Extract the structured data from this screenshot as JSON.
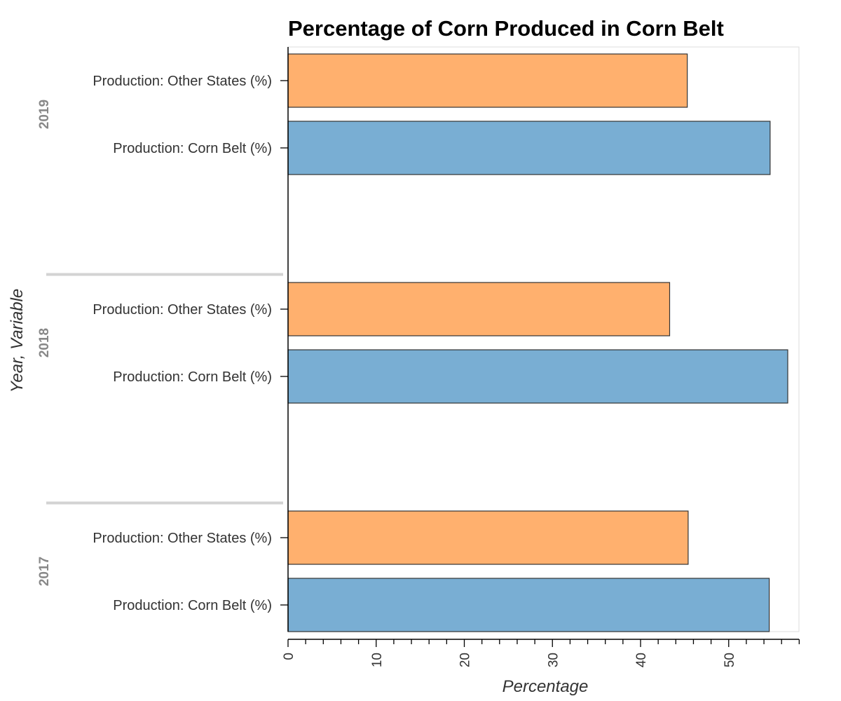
{
  "chart_data": {
    "type": "bar",
    "orientation": "horizontal",
    "title": "Percentage of Corn Produced in Corn Belt",
    "xlabel": "Percentage",
    "ylabel": "Year, Variable",
    "xlim": [
      0,
      58
    ],
    "x_ticks": [
      0,
      10,
      20,
      30,
      40,
      50
    ],
    "grid": false,
    "legend": "none",
    "groups": [
      {
        "name": "2019",
        "bars": [
          {
            "label": "Production: Other States (%)",
            "value": 45.3,
            "color": "#ffb06e"
          },
          {
            "label": "Production: Corn Belt (%)",
            "value": 54.7,
            "color": "#79aed3"
          }
        ]
      },
      {
        "name": "2018",
        "bars": [
          {
            "label": "Production: Other States (%)",
            "value": 43.3,
            "color": "#ffb06e"
          },
          {
            "label": "Production: Corn Belt (%)",
            "value": 56.7,
            "color": "#79aed3"
          }
        ]
      },
      {
        "name": "2017",
        "bars": [
          {
            "label": "Production: Other States (%)",
            "value": 45.4,
            "color": "#ffb06e"
          },
          {
            "label": "Production: Corn Belt (%)",
            "value": 54.6,
            "color": "#79aed3"
          }
        ]
      }
    ]
  }
}
